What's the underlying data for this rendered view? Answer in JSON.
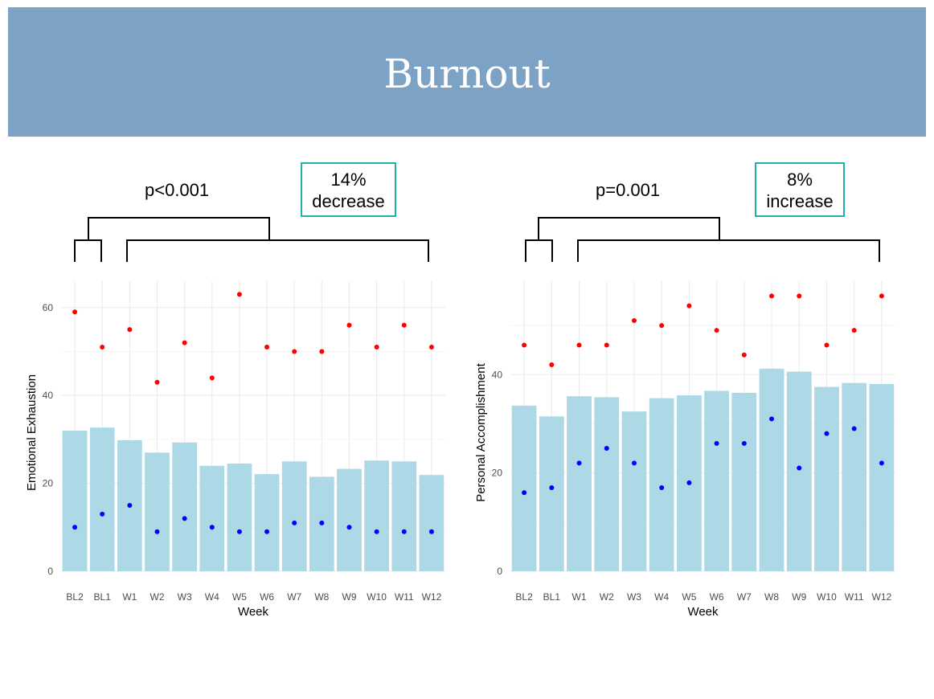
{
  "header": {
    "title": "Burnout"
  },
  "left": {
    "pvalue": "p<0.001",
    "change_line1": "14%",
    "change_line2": "decrease"
  },
  "right": {
    "pvalue": "p=0.001",
    "change_line1": "8%",
    "change_line2": "increase"
  },
  "colors": {
    "bar": "#add8e6",
    "max_point": "#ff0000",
    "min_point": "#0000ff",
    "banner": "#7ca2c6",
    "box_border": "#20b2aa"
  },
  "chart_data": [
    {
      "type": "bar",
      "categories": [
        "BL2",
        "BL1",
        "W1",
        "W2",
        "W3",
        "W4",
        "W5",
        "W6",
        "W7",
        "W8",
        "W9",
        "W10",
        "W11",
        "W12"
      ],
      "values": [
        32,
        32.7,
        29.8,
        27,
        29.3,
        24,
        24.5,
        22.1,
        25,
        21.5,
        23.3,
        25.2,
        25,
        21.9
      ],
      "series": [
        {
          "values": [
            32,
            32.7,
            29.8,
            27,
            29.3,
            24,
            24.5,
            22.1,
            25,
            21.5,
            23.3,
            25.2,
            25,
            21.9
          ]
        },
        {
          "values": [
            59,
            51,
            55,
            43,
            52,
            44,
            63,
            51,
            50,
            50,
            56,
            51,
            56,
            51
          ]
        },
        {
          "values": [
            10,
            13,
            15,
            9,
            12,
            10,
            9,
            9,
            11,
            11,
            10,
            9,
            9,
            9
          ]
        }
      ],
      "xlabel": "Week",
      "ylabel": "Emotional Exhaustion",
      "ylim": [
        0,
        66
      ],
      "yticks": [
        0,
        20,
        40,
        60
      ],
      "grid": true
    },
    {
      "type": "bar",
      "categories": [
        "BL2",
        "BL1",
        "W1",
        "W2",
        "W3",
        "W4",
        "W5",
        "W6",
        "W7",
        "W8",
        "W9",
        "W10",
        "W11",
        "W12"
      ],
      "values": [
        33.7,
        31.5,
        35.6,
        35.4,
        32.5,
        35.2,
        35.8,
        36.7,
        36.3,
        41.2,
        40.6,
        37.5,
        38.3,
        38.1
      ],
      "series": [
        {
          "values": [
            33.7,
            31.5,
            35.6,
            35.4,
            32.5,
            35.2,
            35.8,
            36.7,
            36.3,
            41.2,
            40.6,
            37.5,
            38.3,
            38.1
          ]
        },
        {
          "values": [
            46,
            42,
            46,
            46,
            51,
            50,
            54,
            49,
            44,
            56,
            56,
            46,
            49,
            56
          ]
        },
        {
          "values": [
            16,
            17,
            22,
            25,
            22,
            17,
            18,
            26,
            26,
            31,
            21,
            28,
            29,
            22
          ]
        }
      ],
      "xlabel": "Week",
      "ylabel": "Personal Accomplishment",
      "ylim": [
        0,
        59
      ],
      "yticks": [
        0,
        20,
        40
      ],
      "grid": true
    }
  ]
}
